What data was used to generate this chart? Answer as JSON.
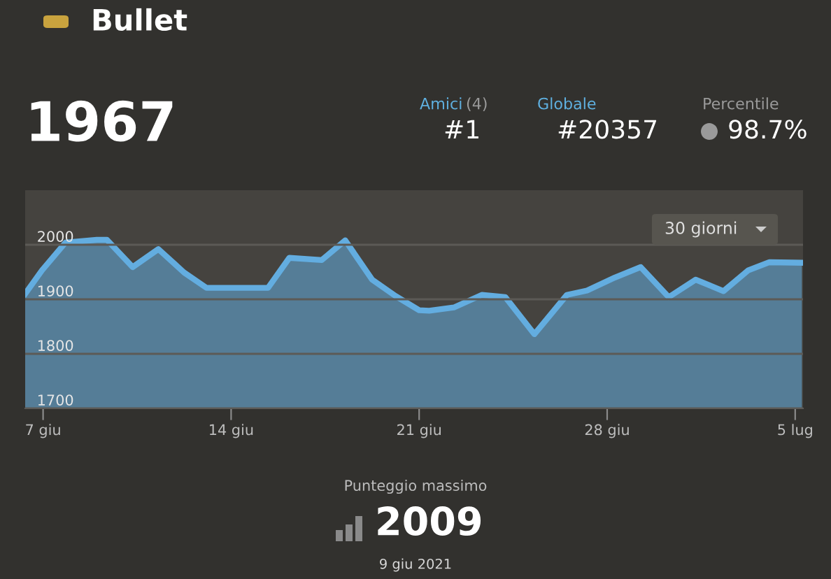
{
  "chart_data": {
    "type": "area",
    "title": "Bullet",
    "x": [
      "2021-06-06T08:00",
      "2021-06-06T23:00",
      "2021-06-07T20:00",
      "2021-06-09T00:00",
      "2021-06-09T09:00",
      "2021-06-10T08:00",
      "2021-06-11T07:00",
      "2021-06-12T06:00",
      "2021-06-13T02:00",
      "2021-06-15T09:00",
      "2021-06-16T04:00",
      "2021-06-17T09:00",
      "2021-06-18T06:00",
      "2021-06-19T06:00",
      "2021-06-20T03:00",
      "2021-06-21T00:00",
      "2021-06-21T09:00",
      "2021-06-22T07:00",
      "2021-06-23T08:00",
      "2021-06-24T05:00",
      "2021-06-25T07:00",
      "2021-06-26T12:00",
      "2021-06-27T06:00",
      "2021-06-28T07:00",
      "2021-06-29T06:00",
      "2021-06-30T07:00",
      "2021-07-01T07:00",
      "2021-07-02T08:00",
      "2021-07-03T06:00",
      "2021-07-04T01:00",
      "2021-07-05T06:00"
    ],
    "series": [
      {
        "color": "#63ade0",
        "values": [
          1910,
          1953,
          2004,
          2009,
          2009,
          1959,
          1992,
          1949,
          1921,
          1921,
          1976,
          1972,
          2008,
          1936,
          1906,
          1880,
          1879,
          1885,
          1908,
          1904,
          1836,
          1908,
          1916,
          1940,
          1959,
          1904,
          1936,
          1915,
          1953,
          1968,
          1967
        ]
      }
    ],
    "xlim": [
      "2021-06-06T08:00",
      "2021-07-05T07:00"
    ],
    "xticks": [
      {
        "value": "2021-06-07",
        "label": "7 giu"
      },
      {
        "value": "2021-06-14",
        "label": "14 giu"
      },
      {
        "value": "2021-06-21",
        "label": "21 giu"
      },
      {
        "value": "2021-06-28",
        "label": "28 giu"
      },
      {
        "value": "2021-07-05",
        "label": "5 lug"
      }
    ],
    "ylim": [
      1700,
      2100
    ],
    "yticks": [
      1700,
      1800,
      1900,
      2000
    ],
    "grid": "y",
    "annotations": [
      "1967",
      "Amici",
      "(4)",
      "#1",
      "Globale",
      "#20357",
      "Percentile",
      "98.7%",
      "30 giorni",
      "Punteggio massimo",
      "2009",
      "9 giu 2021"
    ]
  }
}
